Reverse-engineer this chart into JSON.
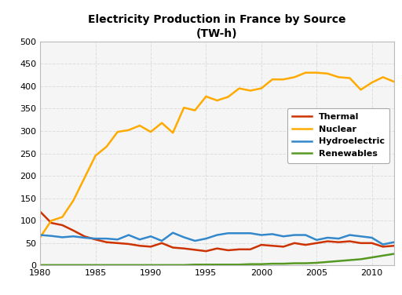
{
  "title": "Electricity Production in France by Source\n(TW-h)",
  "years": [
    1980,
    1981,
    1982,
    1983,
    1984,
    1985,
    1986,
    1987,
    1988,
    1989,
    1990,
    1991,
    1992,
    1993,
    1994,
    1995,
    1996,
    1997,
    1998,
    1999,
    2000,
    2001,
    2002,
    2003,
    2004,
    2005,
    2006,
    2007,
    2008,
    2009,
    2010,
    2011,
    2012
  ],
  "thermal": [
    120,
    95,
    90,
    78,
    65,
    58,
    52,
    50,
    48,
    44,
    42,
    50,
    40,
    38,
    35,
    32,
    38,
    34,
    36,
    36,
    46,
    44,
    42,
    50,
    46,
    50,
    54,
    52,
    54,
    50,
    50,
    42,
    44
  ],
  "nuclear": [
    63,
    100,
    108,
    145,
    195,
    245,
    265,
    298,
    302,
    312,
    298,
    318,
    296,
    352,
    346,
    377,
    368,
    376,
    395,
    390,
    395,
    415,
    415,
    420,
    430,
    430,
    428,
    420,
    418,
    392,
    408,
    420,
    410
  ],
  "hydro": [
    68,
    66,
    63,
    65,
    62,
    60,
    60,
    58,
    68,
    58,
    65,
    55,
    73,
    63,
    55,
    60,
    68,
    72,
    72,
    72,
    68,
    70,
    65,
    68,
    68,
    57,
    62,
    60,
    68,
    65,
    62,
    47,
    52
  ],
  "renewables": [
    1,
    1,
    1,
    1,
    1,
    1,
    1,
    1,
    1,
    1,
    1,
    1,
    1,
    1,
    2,
    2,
    2,
    2,
    2,
    3,
    3,
    4,
    4,
    5,
    5,
    6,
    8,
    10,
    12,
    14,
    18,
    22,
    26
  ],
  "thermal_color": "#cc3300",
  "nuclear_color": "#ffaa00",
  "hydro_color": "#3388cc",
  "renewables_color": "#559922",
  "background_color": "#f5f5f5",
  "grid_color": "#dddddd",
  "ylim": [
    0,
    500
  ],
  "xlim": [
    1980,
    2012
  ],
  "yticks": [
    0,
    50,
    100,
    150,
    200,
    250,
    300,
    350,
    400,
    450,
    500
  ],
  "xticks": [
    1980,
    1985,
    1990,
    1995,
    2000,
    2005,
    2010
  ],
  "legend_labels": [
    "Thermal",
    "Nuclear",
    "Hydroelectric",
    "Renewables"
  ],
  "linewidth": 1.8
}
